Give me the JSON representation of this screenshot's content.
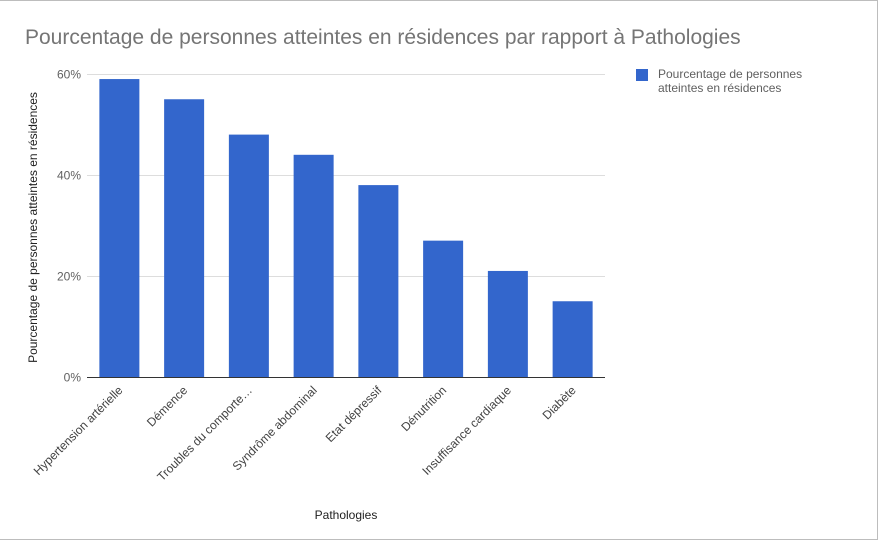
{
  "chart_data": {
    "type": "bar",
    "title": "Pourcentage de personnes atteintes en résidences par rapport à Pathologies",
    "xlabel": "Pathologies",
    "ylabel": "Pourcentage de personnes atteintes en résidences",
    "categories": [
      "Hypertension artérielle",
      "Démence",
      "Troubles du comporte…",
      "Syndrôme abdominal",
      "Etat dépressif",
      "Dénutrition",
      "Insuffisance cardiaque",
      "Diabète"
    ],
    "series": [
      {
        "name": "Pourcentage de personnes atteintes en résidences",
        "values": [
          59,
          55,
          48,
          44,
          38,
          27,
          21,
          15
        ]
      }
    ],
    "ylim": [
      0,
      60
    ],
    "yticks": [
      0,
      20,
      40,
      60
    ],
    "ytick_labels": [
      "0%",
      "20%",
      "40%",
      "60%"
    ],
    "grid": true,
    "legend_position": "right",
    "colors": {
      "bar": "#3366cc",
      "grid": "#dddddd",
      "axis": "#333333"
    }
  }
}
